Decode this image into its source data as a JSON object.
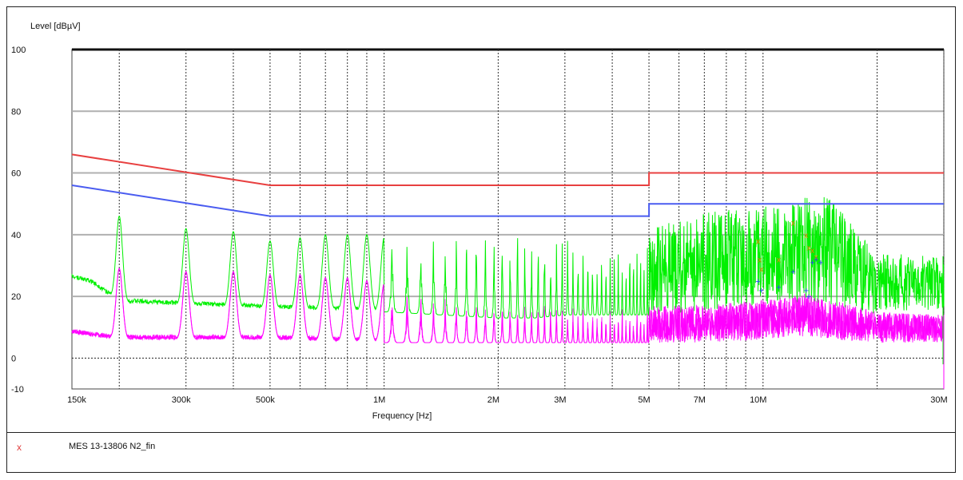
{
  "chart_data": {
    "type": "line",
    "x_scale": "log",
    "ylabel": "Level [dBµV]",
    "xlabel": "Frequency [Hz]",
    "xlim": [
      150000,
      30000000
    ],
    "ylim": [
      -10,
      100
    ],
    "grid": true,
    "y_ticks": [
      100,
      80,
      60,
      40,
      20,
      0,
      -10
    ],
    "y_tick_labels": [
      "100",
      "80",
      "60",
      "40",
      "20",
      "0",
      "-10"
    ],
    "x_ticks": [
      150000,
      300000,
      500000,
      1000000,
      2000000,
      3000000,
      5000000,
      7000000,
      10000000,
      30000000
    ],
    "x_tick_labels": [
      "150k",
      "300k",
      "500k",
      "1M",
      "2M",
      "3M",
      "5M",
      "7M",
      "10M",
      "30M"
    ],
    "colors": {
      "qp_limit": "#e84040",
      "avg_limit": "#4a5cf0",
      "qp_trace": "#00f000",
      "avg_trace": "#ff00ff",
      "qp_markers": "#f08000",
      "avg_markers": "#2040ff"
    },
    "series": [
      {
        "role": "limit-qp",
        "x": [
          150000,
          500000,
          500000,
          5000000,
          5000000,
          30000000
        ],
        "y": [
          66,
          56,
          56,
          56,
          60,
          60
        ]
      },
      {
        "role": "limit-avg",
        "x": [
          150000,
          500000,
          500000,
          5000000,
          5000000,
          30000000
        ],
        "y": [
          56,
          46,
          46,
          46,
          50,
          50
        ]
      },
      {
        "role": "trace-qp",
        "envelope_x": [
          150000,
          170000,
          200000,
          300000,
          500000,
          1000000,
          2000000,
          2500000,
          3000000,
          5000000,
          7000000,
          10000000,
          12000000,
          13000000,
          15000000,
          20000000,
          30000000
        ],
        "envelope_peak": [
          27,
          32,
          46,
          42,
          40,
          41,
          43,
          45,
          45,
          42,
          47,
          50,
          51,
          53,
          52,
          34,
          33
        ],
        "envelope_floor": [
          26,
          24,
          18,
          17,
          16,
          15,
          13,
          13,
          14,
          14,
          15,
          17,
          18,
          18,
          17,
          14,
          16
        ],
        "peaks_x": [
          200000,
          300000,
          400000,
          500000,
          600000,
          700000,
          800000,
          900000,
          1000000
        ],
        "peaks_y": [
          46,
          42,
          41,
          38,
          39,
          40,
          40,
          40,
          39
        ]
      },
      {
        "role": "trace-avg",
        "envelope_x": [
          150000,
          170000,
          200000,
          300000,
          500000,
          1000000,
          2000000,
          3000000,
          5000000,
          7000000,
          10000000,
          12000000,
          13000000,
          15000000,
          20000000,
          30000000
        ],
        "envelope_peak": [
          9,
          10,
          29,
          28,
          26,
          23,
          20,
          18,
          17,
          17,
          19,
          20,
          21,
          19,
          15,
          14
        ],
        "envelope_floor": [
          8,
          7,
          6,
          6,
          6,
          5,
          5,
          5,
          5,
          5,
          6,
          7,
          7,
          6,
          5,
          5
        ],
        "peaks_x": [
          200000,
          300000,
          400000,
          500000,
          600000,
          700000,
          800000,
          900000,
          1000000
        ],
        "peaks_y": [
          29,
          28,
          28,
          27,
          27,
          26,
          26,
          25,
          24
        ]
      }
    ],
    "markers_qp": [
      {
        "x": 9700000,
        "y": 38
      },
      {
        "x": 9800000,
        "y": 32
      },
      {
        "x": 9900000,
        "y": 29
      },
      {
        "x": 11000000,
        "y": 32
      },
      {
        "x": 12000000,
        "y": 44
      },
      {
        "x": 13000000,
        "y": 40
      },
      {
        "x": 13200000,
        "y": 36
      },
      {
        "x": 13500000,
        "y": 35
      },
      {
        "x": 13800000,
        "y": 33
      }
    ],
    "markers_avg": [
      {
        "x": 9700000,
        "y": 25
      },
      {
        "x": 9900000,
        "y": 22
      },
      {
        "x": 11000000,
        "y": 23
      },
      {
        "x": 12000000,
        "y": 28
      },
      {
        "x": 13000000,
        "y": 22
      },
      {
        "x": 13200000,
        "y": 20
      },
      {
        "x": 13500000,
        "y": 31
      },
      {
        "x": 13800000,
        "y": 32
      },
      {
        "x": 14200000,
        "y": 31
      }
    ]
  },
  "status": {
    "marker": "x",
    "text": "MES   13-13806  N2_fin"
  }
}
